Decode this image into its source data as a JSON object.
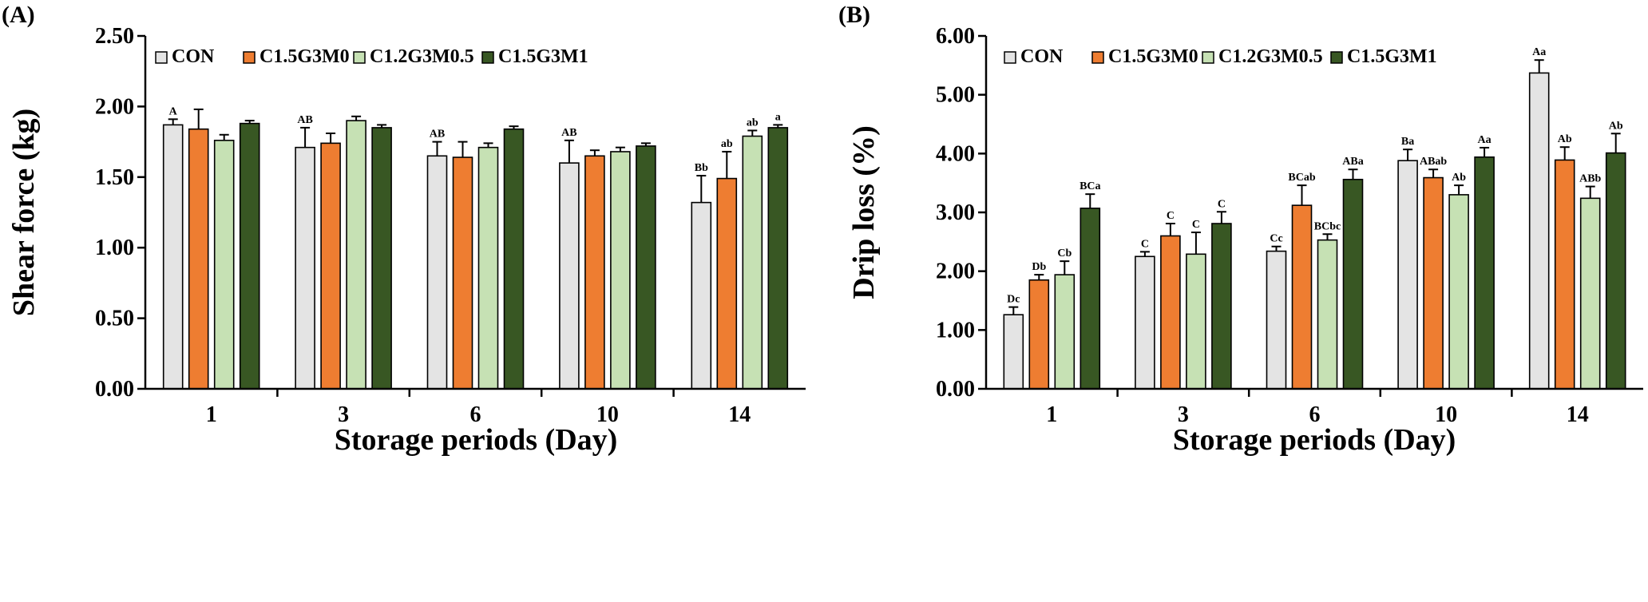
{
  "chart_data": [
    {
      "type": "bar",
      "panel_label": "(A)",
      "categories": [
        "1",
        "3",
        "6",
        "10",
        "14"
      ],
      "xlabel": "Storage periods (Day)",
      "ylabel": "Shear force (kg)",
      "ylim": [
        0,
        2.5
      ],
      "yticks": [
        "0.00",
        "0.50",
        "1.00",
        "1.50",
        "2.00",
        "2.50"
      ],
      "legend_position": "top-left",
      "series": [
        {
          "name": "CON",
          "color": "#e4e4e4",
          "values": [
            1.87,
            1.71,
            1.65,
            1.6,
            1.32
          ],
          "errors": [
            0.04,
            0.14,
            0.1,
            0.16,
            0.19
          ],
          "labels": [
            "A",
            "AB",
            "AB",
            "AB",
            "Bb"
          ]
        },
        {
          "name": "C1.5G3M0",
          "color": "#ee7d31",
          "values": [
            1.84,
            1.74,
            1.64,
            1.65,
            1.49
          ],
          "errors": [
            0.14,
            0.07,
            0.11,
            0.04,
            0.19
          ],
          "labels": [
            "",
            "",
            "",
            "",
            "ab"
          ]
        },
        {
          "name": "C1.2G3M0.5",
          "color": "#c6e1b4",
          "values": [
            1.76,
            1.9,
            1.71,
            1.68,
            1.79
          ],
          "errors": [
            0.04,
            0.03,
            0.03,
            0.03,
            0.04
          ],
          "labels": [
            "",
            "",
            "",
            "",
            "ab"
          ]
        },
        {
          "name": "C1.5G3M1",
          "color": "#385723",
          "values": [
            1.88,
            1.85,
            1.84,
            1.72,
            1.85
          ],
          "errors": [
            0.02,
            0.02,
            0.02,
            0.02,
            0.02
          ],
          "labels": [
            "",
            "",
            "",
            "",
            "a"
          ]
        }
      ]
    },
    {
      "type": "bar",
      "panel_label": "(B)",
      "categories": [
        "1",
        "3",
        "6",
        "10",
        "14"
      ],
      "xlabel": "Storage periods (Day)",
      "ylabel": "Drip loss (%)",
      "ylim": [
        0,
        6
      ],
      "yticks": [
        "0.00",
        "1.00",
        "2.00",
        "3.00",
        "4.00",
        "5.00",
        "6.00"
      ],
      "legend_position": "top-left",
      "series": [
        {
          "name": "CON",
          "color": "#e4e4e4",
          "values": [
            1.26,
            2.25,
            2.34,
            3.88,
            5.37
          ],
          "errors": [
            0.13,
            0.08,
            0.08,
            0.19,
            0.22
          ],
          "labels": [
            "Dc",
            "C",
            "Cc",
            "Ba",
            "Aa"
          ]
        },
        {
          "name": "C1.5G3M0",
          "color": "#ee7d31",
          "values": [
            1.85,
            2.6,
            3.12,
            3.59,
            3.89
          ],
          "errors": [
            0.09,
            0.21,
            0.34,
            0.14,
            0.22
          ],
          "labels": [
            "Db",
            "C",
            "BCab",
            "ABab",
            "Ab"
          ]
        },
        {
          "name": "C1.2G3M0.5",
          "color": "#c6e1b4",
          "values": [
            1.94,
            2.29,
            2.53,
            3.3,
            3.24
          ],
          "errors": [
            0.23,
            0.37,
            0.1,
            0.16,
            0.2
          ],
          "labels": [
            "Cb",
            "C",
            "BCbc",
            "Ab",
            "ABb"
          ]
        },
        {
          "name": "C1.5G3M1",
          "color": "#385723",
          "values": [
            3.07,
            2.81,
            3.56,
            3.94,
            4.01
          ],
          "errors": [
            0.24,
            0.2,
            0.17,
            0.16,
            0.33
          ],
          "labels": [
            "BCa",
            "C",
            "ABa",
            "Aa",
            "Ab"
          ]
        }
      ]
    }
  ]
}
